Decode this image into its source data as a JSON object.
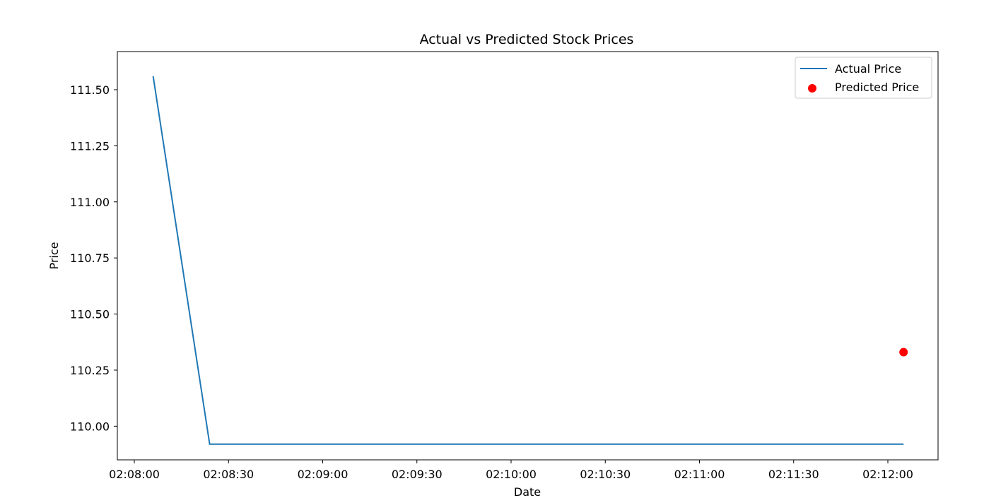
{
  "chart_data": {
    "type": "line",
    "title": "Actual vs Predicted Stock Prices",
    "xlabel": "Date",
    "ylabel": "Price",
    "xlim": [
      "02:08:00",
      "02:12:00"
    ],
    "ylim": [
      109.85,
      111.67
    ],
    "x_ticks": [
      "02:08:00",
      "02:08:30",
      "02:09:00",
      "02:09:30",
      "02:10:00",
      "02:10:30",
      "02:11:00",
      "02:11:30",
      "02:12:00"
    ],
    "y_ticks": [
      "110.00",
      "110.25",
      "110.50",
      "110.75",
      "111.00",
      "111.25",
      "111.50"
    ],
    "series": [
      {
        "name": "Actual Price",
        "kind": "line",
        "color": "#1f77b4",
        "points": [
          {
            "x": "02:08:06",
            "y": 111.56
          },
          {
            "x": "02:08:24",
            "y": 109.92
          },
          {
            "x": "02:12:05",
            "y": 109.92
          }
        ]
      },
      {
        "name": "Predicted Price",
        "kind": "scatter",
        "color": "#ff0000",
        "points": [
          {
            "x": "02:12:05",
            "y": 110.33
          }
        ]
      }
    ],
    "legend": {
      "position": "top-right"
    },
    "grid": false
  }
}
